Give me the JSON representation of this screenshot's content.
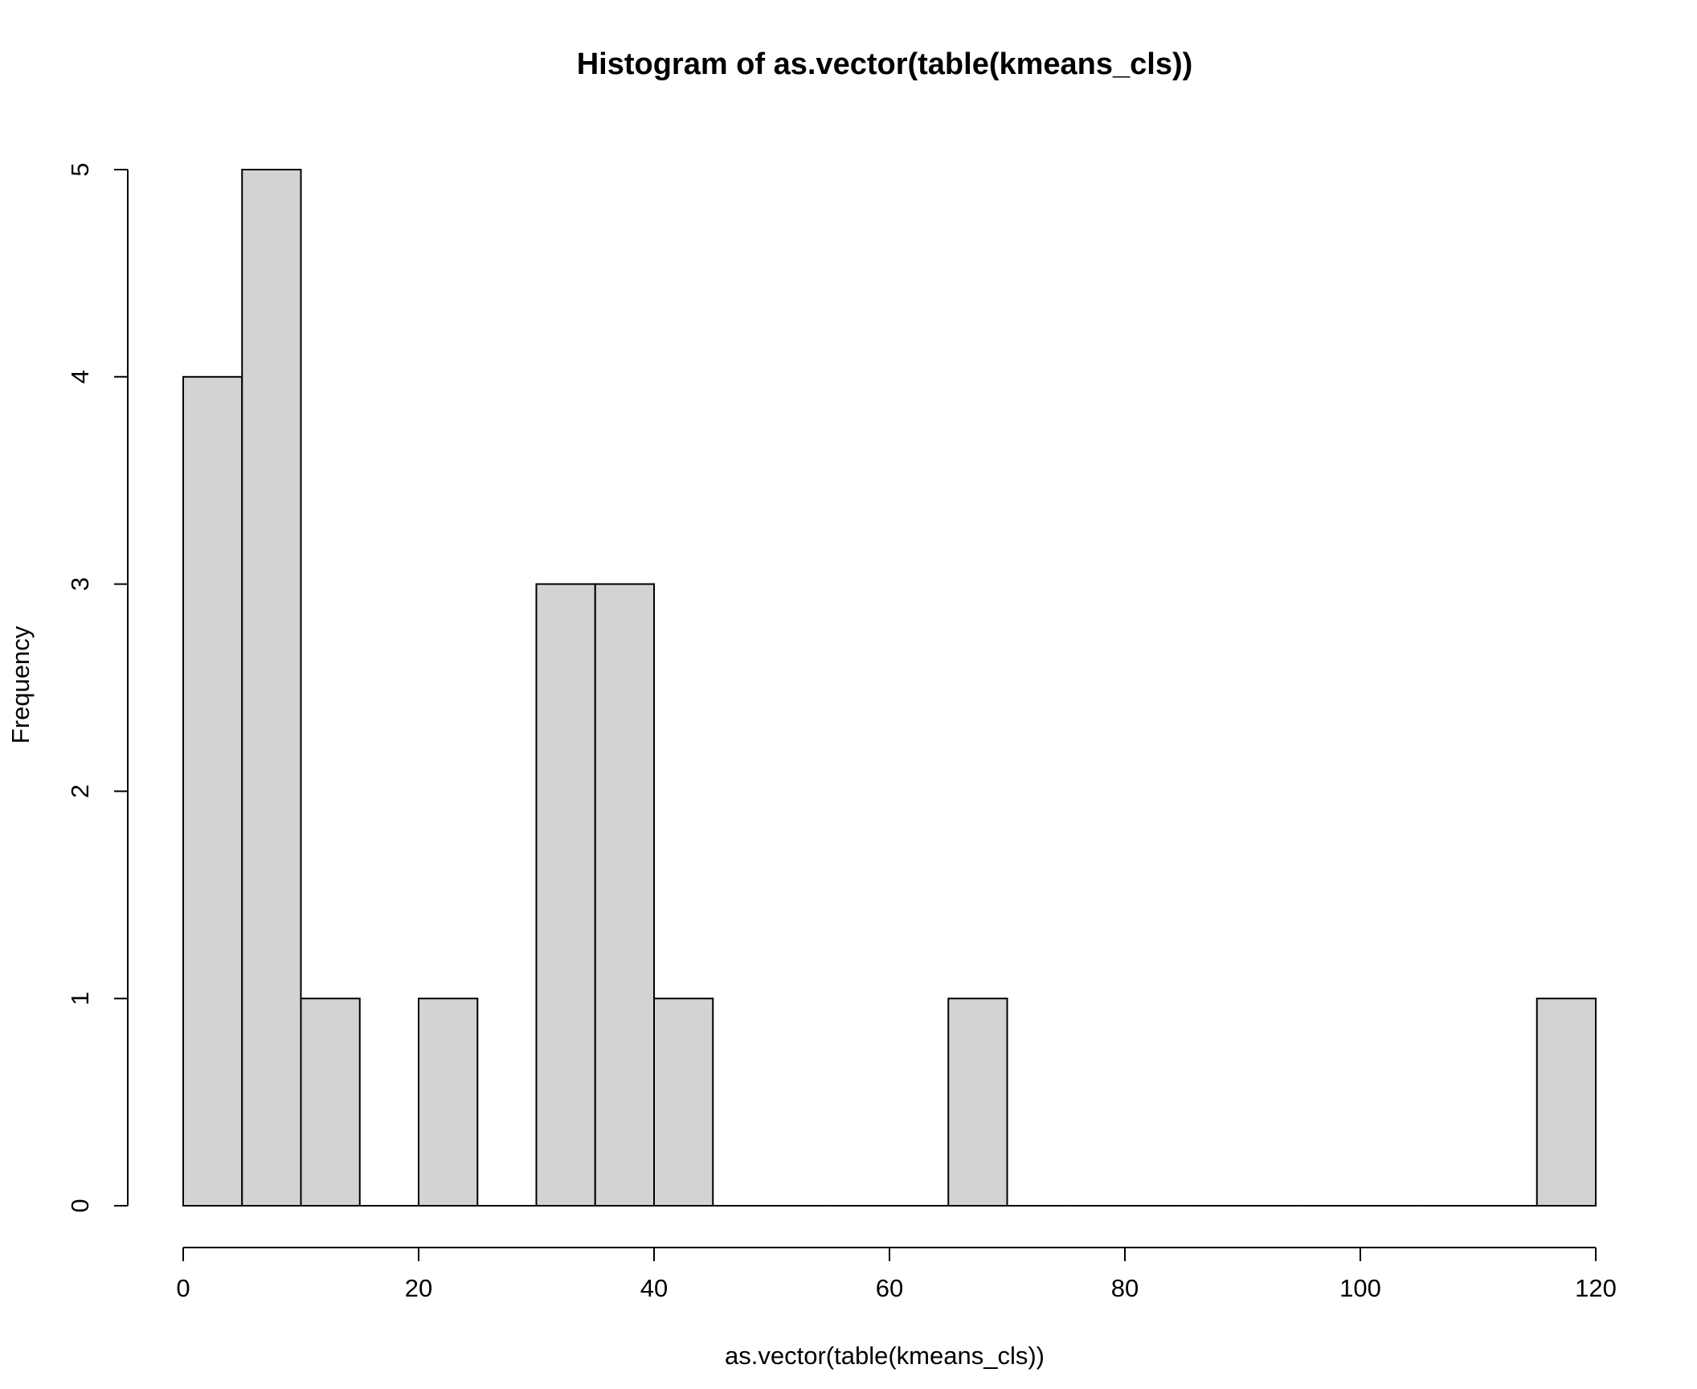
{
  "chart_data": {
    "type": "bar",
    "title": "Histogram of as.vector(table(kmeans_cls))",
    "xlabel": "as.vector(table(kmeans_cls))",
    "ylabel": "Frequency",
    "bins": [
      {
        "start": 0,
        "end": 5,
        "count": 4
      },
      {
        "start": 5,
        "end": 10,
        "count": 5
      },
      {
        "start": 10,
        "end": 15,
        "count": 1
      },
      {
        "start": 15,
        "end": 20,
        "count": 0
      },
      {
        "start": 20,
        "end": 25,
        "count": 1
      },
      {
        "start": 25,
        "end": 30,
        "count": 0
      },
      {
        "start": 30,
        "end": 35,
        "count": 3
      },
      {
        "start": 35,
        "end": 40,
        "count": 3
      },
      {
        "start": 40,
        "end": 45,
        "count": 1
      },
      {
        "start": 45,
        "end": 50,
        "count": 0
      },
      {
        "start": 50,
        "end": 55,
        "count": 0
      },
      {
        "start": 55,
        "end": 60,
        "count": 0
      },
      {
        "start": 60,
        "end": 65,
        "count": 0
      },
      {
        "start": 65,
        "end": 70,
        "count": 1
      },
      {
        "start": 70,
        "end": 75,
        "count": 0
      },
      {
        "start": 75,
        "end": 80,
        "count": 0
      },
      {
        "start": 80,
        "end": 85,
        "count": 0
      },
      {
        "start": 85,
        "end": 90,
        "count": 0
      },
      {
        "start": 90,
        "end": 95,
        "count": 0
      },
      {
        "start": 95,
        "end": 100,
        "count": 0
      },
      {
        "start": 100,
        "end": 105,
        "count": 0
      },
      {
        "start": 105,
        "end": 110,
        "count": 0
      },
      {
        "start": 110,
        "end": 115,
        "count": 0
      },
      {
        "start": 115,
        "end": 120,
        "count": 1
      }
    ],
    "xlim": [
      0,
      120
    ],
    "ylim": [
      0,
      5
    ],
    "x_ticks": [
      0,
      20,
      40,
      60,
      80,
      100,
      120
    ],
    "y_ticks": [
      0,
      1,
      2,
      3,
      4,
      5
    ],
    "grid": false,
    "bar_fill": "#d3d3d3",
    "bar_stroke": "#000000"
  }
}
